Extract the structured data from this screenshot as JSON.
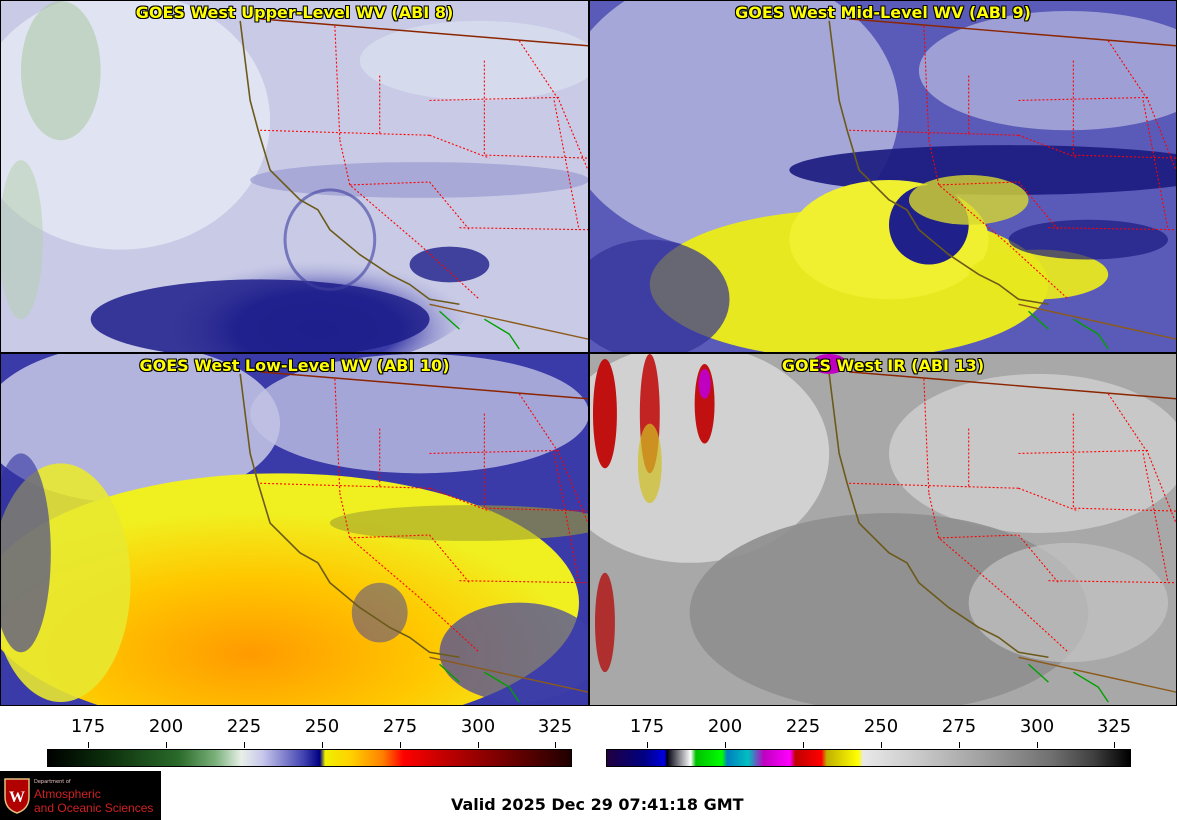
{
  "panels": [
    {
      "id": "p1",
      "title": "GOES West Upper-Level WV (ABI 8)",
      "palette": "wv_upper"
    },
    {
      "id": "p2",
      "title": "GOES West Mid-Level WV (ABI 9)",
      "palette": "wv_mid"
    },
    {
      "id": "p3",
      "title": "GOES West Low-Level WV (ABI 10)",
      "palette": "wv_low"
    },
    {
      "id": "p4",
      "title": "GOES West IR (ABI 13)",
      "palette": "ir"
    }
  ],
  "colorbars": [
    {
      "name": "wv-colorbar",
      "ticks": [
        "175",
        "200",
        "225",
        "250",
        "275",
        "300",
        "325"
      ]
    },
    {
      "name": "ir-colorbar",
      "ticks": [
        "175",
        "200",
        "225",
        "250",
        "275",
        "300",
        "325"
      ]
    }
  ],
  "colors": {
    "title_text": "#ffff00",
    "state_borders": "#ff0000",
    "coastline": "#7a5a1a",
    "intl_border": "#8b2500",
    "mexico_outline": "#00a000"
  },
  "logo": {
    "dept_text": "Department of",
    "line1": "Atmospheric",
    "line2": "and Oceanic Sciences",
    "icon": "uw-crest-icon"
  },
  "valid_time": "Valid 2025 Dec 29 07:41:18 GMT"
}
